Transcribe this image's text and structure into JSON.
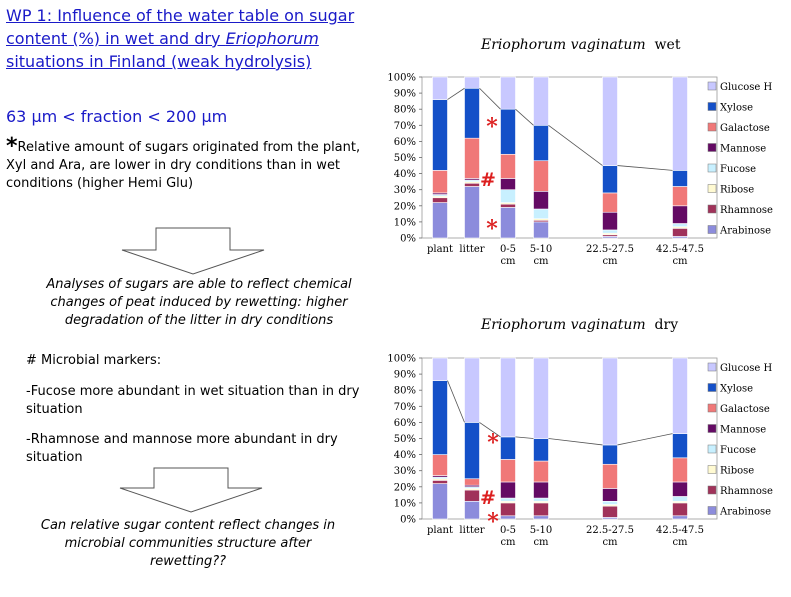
{
  "title": {
    "line1": "WP 1: Influence of the water table on sugar",
    "line2a": "content (%) in  wet and dry ",
    "line2b": "Eriophorum",
    "line3": "situations in Finland (weak hydrolysis)"
  },
  "fraction": "63 µm < fraction < 200 µm",
  "note": {
    "star": "*",
    "text": "Relative amount of sugars originated from the plant, Xyl and Ara, are lower in dry conditions than in wet conditions (higher Hemi Glu)"
  },
  "analyses": "Analyses of sugars are able to reflect chemical changes of peat induced by rewetting: higher degradation of the litter in dry conditions",
  "markers": {
    "heading": "# Microbial markers:",
    "point1": "-Fucose more abundant in wet situation than in dry situation",
    "point2": "-Rhamnose and mannose more abundant in dry situation"
  },
  "question": "Can relative sugar content reflect changes in microbial communities structure after rewetting??",
  "chart_data": [
    {
      "type": "bar",
      "stacked": true,
      "title_species": "Eriophorum vaginatum",
      "title_condition": "wet",
      "categories": [
        "plant",
        "litter",
        "0-5 cm",
        "5-10 cm",
        "22.5-27.5 cm",
        "42.5-47.5 cm"
      ],
      "ylim": [
        0,
        100
      ],
      "yticks": [
        "0%",
        "10%",
        "20%",
        "30%",
        "40%",
        "50%",
        "60%",
        "70%",
        "80%",
        "90%",
        "100%"
      ],
      "series": [
        {
          "name": "Arabinose",
          "color": "#8c8cdc",
          "values": [
            22,
            32,
            19,
            10,
            1,
            1
          ]
        },
        {
          "name": "Rhamnose",
          "color": "#a0325a",
          "values": [
            3,
            2,
            2,
            1,
            1,
            5
          ]
        },
        {
          "name": "Ribose",
          "color": "#fffad2",
          "values": [
            1,
            1,
            1,
            1,
            1,
            1
          ]
        },
        {
          "name": "Fucose",
          "color": "#c8f0ff",
          "values": [
            1,
            1,
            8,
            6,
            2,
            2
          ]
        },
        {
          "name": "Mannose",
          "color": "#640a64",
          "values": [
            1,
            1,
            7,
            11,
            11,
            11
          ]
        },
        {
          "name": "Galactose",
          "color": "#f07878",
          "values": [
            14,
            25,
            15,
            19,
            12,
            12
          ]
        },
        {
          "name": "Xylose",
          "color": "#1450c8",
          "values": [
            44,
            31,
            28,
            22,
            17,
            10
          ]
        },
        {
          "name": "Glucose H",
          "color": "#c8c8ff",
          "values": [
            14,
            7,
            20,
            30,
            55,
            58
          ]
        }
      ],
      "annotations": [
        "*",
        "#",
        "*"
      ],
      "legend_position": "right"
    },
    {
      "type": "bar",
      "stacked": true,
      "title_species": "Eriophorum vaginatum",
      "title_condition": "dry",
      "categories": [
        "plant",
        "litter",
        "0-5 cm",
        "5-10 cm",
        "22.5-27.5 cm",
        "42.5-47.5 cm"
      ],
      "ylim": [
        0,
        100
      ],
      "yticks": [
        "0%",
        "10%",
        "20%",
        "30%",
        "40%",
        "50%",
        "60%",
        "70%",
        "80%",
        "90%",
        "100%"
      ],
      "series": [
        {
          "name": "Arabinose",
          "color": "#8c8cdc",
          "values": [
            22,
            11,
            2,
            2,
            1,
            2
          ]
        },
        {
          "name": "Rhamnose",
          "color": "#a0325a",
          "values": [
            2,
            7,
            8,
            8,
            7,
            8
          ]
        },
        {
          "name": "Ribose",
          "color": "#fffad2",
          "values": [
            1,
            1,
            1,
            1,
            1,
            1
          ]
        },
        {
          "name": "Fucose",
          "color": "#c8f0ff",
          "values": [
            1,
            1,
            2,
            2,
            2,
            3
          ]
        },
        {
          "name": "Mannose",
          "color": "#640a64",
          "values": [
            1,
            1,
            10,
            10,
            8,
            9
          ]
        },
        {
          "name": "Galactose",
          "color": "#f07878",
          "values": [
            13,
            4,
            14,
            13,
            15,
            15
          ]
        },
        {
          "name": "Xylose",
          "color": "#1450c8",
          "values": [
            46,
            35,
            14,
            14,
            12,
            15
          ]
        },
        {
          "name": "Glucose H",
          "color": "#c8c8ff",
          "values": [
            14,
            40,
            49,
            50,
            54,
            47
          ]
        }
      ],
      "annotations": [
        "*",
        "#",
        "*"
      ],
      "legend_position": "right"
    }
  ]
}
